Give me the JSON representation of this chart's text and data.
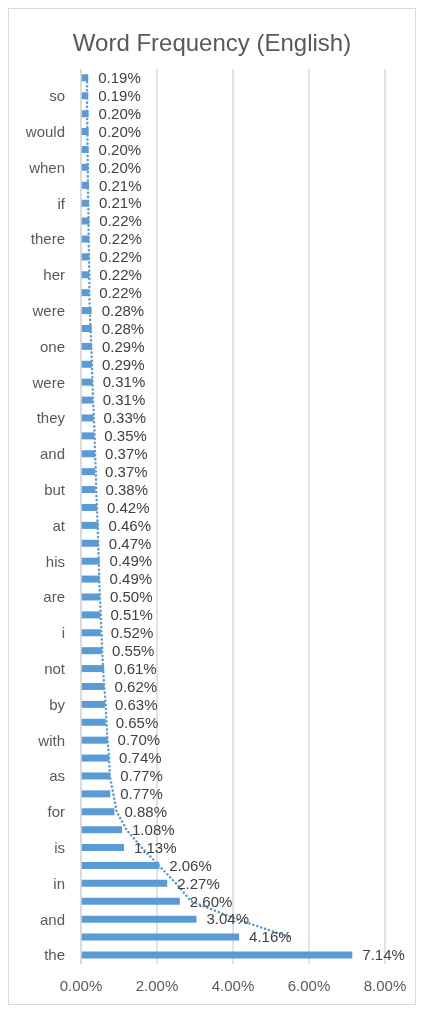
{
  "chart_data": {
    "type": "bar",
    "orientation": "horizontal",
    "title": "Word Frequency (English)",
    "categories": [
      null,
      "so",
      null,
      "would",
      null,
      "when",
      null,
      "if",
      null,
      "there",
      null,
      "her",
      null,
      "were",
      null,
      "one",
      null,
      "were",
      null,
      "they",
      null,
      "and",
      null,
      "but",
      null,
      "at",
      null,
      "his",
      null,
      "are",
      null,
      "i",
      null,
      "not",
      null,
      "by",
      null,
      "with",
      null,
      "as",
      null,
      "for",
      null,
      "is",
      null,
      "in",
      null,
      "and",
      null,
      "the"
    ],
    "series": [
      {
        "type": "bar",
        "color": "#5b9bd5",
        "values": [
          0.19,
          0.19,
          0.2,
          0.2,
          0.2,
          0.2,
          0.21,
          0.21,
          0.22,
          0.22,
          0.22,
          0.22,
          0.22,
          0.28,
          0.28,
          0.29,
          0.29,
          0.31,
          0.31,
          0.33,
          0.35,
          0.37,
          0.37,
          0.38,
          0.42,
          0.46,
          0.47,
          0.49,
          0.49,
          0.5,
          0.51,
          0.52,
          0.55,
          0.61,
          0.62,
          0.63,
          0.65,
          0.7,
          0.74,
          0.77,
          0.77,
          0.88,
          1.08,
          1.13,
          2.06,
          2.27,
          2.6,
          3.04,
          4.16,
          7.14
        ],
        "value_labels": [
          "0.19%",
          "0.19%",
          "0.20%",
          "0.20%",
          "0.20%",
          "0.20%",
          "0.21%",
          "0.21%",
          "0.22%",
          "0.22%",
          "0.22%",
          "0.22%",
          "0.22%",
          "0.28%",
          "0.28%",
          "0.29%",
          "0.29%",
          "0.31%",
          "0.31%",
          "0.33%",
          "0.35%",
          "0.37%",
          "0.37%",
          "0.38%",
          "0.42%",
          "0.46%",
          "0.47%",
          "0.49%",
          "0.49%",
          "0.50%",
          "0.51%",
          "0.52%",
          "0.55%",
          "0.61%",
          "0.62%",
          "0.63%",
          "0.65%",
          "0.70%",
          "0.74%",
          "0.77%",
          "0.77%",
          "0.88%",
          "1.08%",
          "1.13%",
          "2.06%",
          "2.27%",
          "2.60%",
          "3.04%",
          "4.16%",
          "7.14%"
        ]
      },
      {
        "type": "line",
        "color": "#5b9bd5",
        "line_style": "dotted",
        "marker": "none",
        "values": [
          0.16,
          0.16,
          0.16,
          0.17,
          0.17,
          0.18,
          0.18,
          0.19,
          0.2,
          0.2,
          0.21,
          0.22,
          0.22,
          0.23,
          0.25,
          0.27,
          0.29,
          0.3,
          0.32,
          0.34,
          0.36,
          0.37,
          0.39,
          0.4,
          0.42,
          0.44,
          0.45,
          0.47,
          0.48,
          0.5,
          0.52,
          0.54,
          0.56,
          0.58,
          0.61,
          0.65,
          0.67,
          0.7,
          0.74,
          0.76,
          0.85,
          0.94,
          1.2,
          1.6,
          2.05,
          2.5,
          2.9,
          4.1,
          5.5,
          null
        ]
      }
    ],
    "xlim": [
      0,
      8
    ],
    "xticks": [
      {
        "value": 0,
        "label": "0.00%"
      },
      {
        "value": 2,
        "label": "2.00%"
      },
      {
        "value": 4,
        "label": "4.00%"
      },
      {
        "value": 6,
        "label": "6.00%"
      },
      {
        "value": 8,
        "label": "8.00%"
      }
    ],
    "grid": "x",
    "legend": false
  }
}
